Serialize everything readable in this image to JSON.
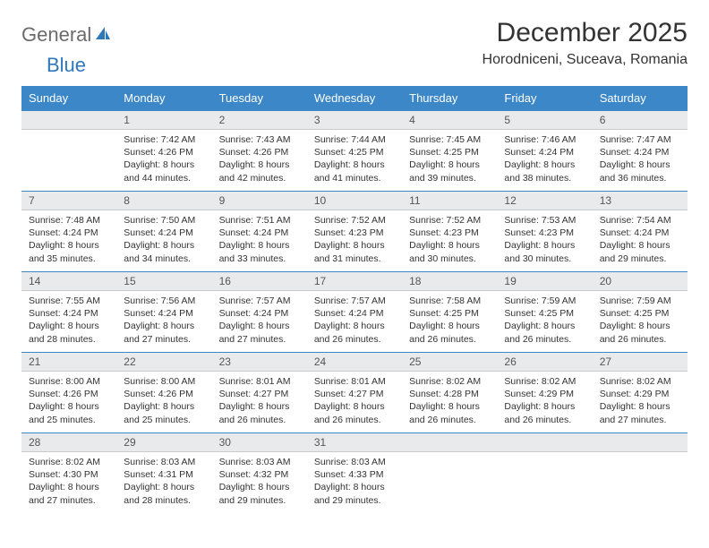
{
  "logo": {
    "text1": "General",
    "text2": "Blue"
  },
  "title": "December 2025",
  "location": "Horodniceni, Suceava, Romania",
  "colors": {
    "header_bg": "#3b87c8",
    "header_text": "#ffffff",
    "daynum_bg": "#e8eaec",
    "daynum_border_top": "#3b87c8",
    "text": "#333333",
    "logo_gray": "#6b6b6b",
    "logo_blue": "#2f77bb"
  },
  "weekdays": [
    "Sunday",
    "Monday",
    "Tuesday",
    "Wednesday",
    "Thursday",
    "Friday",
    "Saturday"
  ],
  "weeks": [
    [
      {
        "n": "",
        "sr": "",
        "ss": "",
        "d1": "",
        "d2": ""
      },
      {
        "n": "1",
        "sr": "Sunrise: 7:42 AM",
        "ss": "Sunset: 4:26 PM",
        "d1": "Daylight: 8 hours",
        "d2": "and 44 minutes."
      },
      {
        "n": "2",
        "sr": "Sunrise: 7:43 AM",
        "ss": "Sunset: 4:26 PM",
        "d1": "Daylight: 8 hours",
        "d2": "and 42 minutes."
      },
      {
        "n": "3",
        "sr": "Sunrise: 7:44 AM",
        "ss": "Sunset: 4:25 PM",
        "d1": "Daylight: 8 hours",
        "d2": "and 41 minutes."
      },
      {
        "n": "4",
        "sr": "Sunrise: 7:45 AM",
        "ss": "Sunset: 4:25 PM",
        "d1": "Daylight: 8 hours",
        "d2": "and 39 minutes."
      },
      {
        "n": "5",
        "sr": "Sunrise: 7:46 AM",
        "ss": "Sunset: 4:24 PM",
        "d1": "Daylight: 8 hours",
        "d2": "and 38 minutes."
      },
      {
        "n": "6",
        "sr": "Sunrise: 7:47 AM",
        "ss": "Sunset: 4:24 PM",
        "d1": "Daylight: 8 hours",
        "d2": "and 36 minutes."
      }
    ],
    [
      {
        "n": "7",
        "sr": "Sunrise: 7:48 AM",
        "ss": "Sunset: 4:24 PM",
        "d1": "Daylight: 8 hours",
        "d2": "and 35 minutes."
      },
      {
        "n": "8",
        "sr": "Sunrise: 7:50 AM",
        "ss": "Sunset: 4:24 PM",
        "d1": "Daylight: 8 hours",
        "d2": "and 34 minutes."
      },
      {
        "n": "9",
        "sr": "Sunrise: 7:51 AM",
        "ss": "Sunset: 4:24 PM",
        "d1": "Daylight: 8 hours",
        "d2": "and 33 minutes."
      },
      {
        "n": "10",
        "sr": "Sunrise: 7:52 AM",
        "ss": "Sunset: 4:23 PM",
        "d1": "Daylight: 8 hours",
        "d2": "and 31 minutes."
      },
      {
        "n": "11",
        "sr": "Sunrise: 7:52 AM",
        "ss": "Sunset: 4:23 PM",
        "d1": "Daylight: 8 hours",
        "d2": "and 30 minutes."
      },
      {
        "n": "12",
        "sr": "Sunrise: 7:53 AM",
        "ss": "Sunset: 4:23 PM",
        "d1": "Daylight: 8 hours",
        "d2": "and 30 minutes."
      },
      {
        "n": "13",
        "sr": "Sunrise: 7:54 AM",
        "ss": "Sunset: 4:24 PM",
        "d1": "Daylight: 8 hours",
        "d2": "and 29 minutes."
      }
    ],
    [
      {
        "n": "14",
        "sr": "Sunrise: 7:55 AM",
        "ss": "Sunset: 4:24 PM",
        "d1": "Daylight: 8 hours",
        "d2": "and 28 minutes."
      },
      {
        "n": "15",
        "sr": "Sunrise: 7:56 AM",
        "ss": "Sunset: 4:24 PM",
        "d1": "Daylight: 8 hours",
        "d2": "and 27 minutes."
      },
      {
        "n": "16",
        "sr": "Sunrise: 7:57 AM",
        "ss": "Sunset: 4:24 PM",
        "d1": "Daylight: 8 hours",
        "d2": "and 27 minutes."
      },
      {
        "n": "17",
        "sr": "Sunrise: 7:57 AM",
        "ss": "Sunset: 4:24 PM",
        "d1": "Daylight: 8 hours",
        "d2": "and 26 minutes."
      },
      {
        "n": "18",
        "sr": "Sunrise: 7:58 AM",
        "ss": "Sunset: 4:25 PM",
        "d1": "Daylight: 8 hours",
        "d2": "and 26 minutes."
      },
      {
        "n": "19",
        "sr": "Sunrise: 7:59 AM",
        "ss": "Sunset: 4:25 PM",
        "d1": "Daylight: 8 hours",
        "d2": "and 26 minutes."
      },
      {
        "n": "20",
        "sr": "Sunrise: 7:59 AM",
        "ss": "Sunset: 4:25 PM",
        "d1": "Daylight: 8 hours",
        "d2": "and 26 minutes."
      }
    ],
    [
      {
        "n": "21",
        "sr": "Sunrise: 8:00 AM",
        "ss": "Sunset: 4:26 PM",
        "d1": "Daylight: 8 hours",
        "d2": "and 25 minutes."
      },
      {
        "n": "22",
        "sr": "Sunrise: 8:00 AM",
        "ss": "Sunset: 4:26 PM",
        "d1": "Daylight: 8 hours",
        "d2": "and 25 minutes."
      },
      {
        "n": "23",
        "sr": "Sunrise: 8:01 AM",
        "ss": "Sunset: 4:27 PM",
        "d1": "Daylight: 8 hours",
        "d2": "and 26 minutes."
      },
      {
        "n": "24",
        "sr": "Sunrise: 8:01 AM",
        "ss": "Sunset: 4:27 PM",
        "d1": "Daylight: 8 hours",
        "d2": "and 26 minutes."
      },
      {
        "n": "25",
        "sr": "Sunrise: 8:02 AM",
        "ss": "Sunset: 4:28 PM",
        "d1": "Daylight: 8 hours",
        "d2": "and 26 minutes."
      },
      {
        "n": "26",
        "sr": "Sunrise: 8:02 AM",
        "ss": "Sunset: 4:29 PM",
        "d1": "Daylight: 8 hours",
        "d2": "and 26 minutes."
      },
      {
        "n": "27",
        "sr": "Sunrise: 8:02 AM",
        "ss": "Sunset: 4:29 PM",
        "d1": "Daylight: 8 hours",
        "d2": "and 27 minutes."
      }
    ],
    [
      {
        "n": "28",
        "sr": "Sunrise: 8:02 AM",
        "ss": "Sunset: 4:30 PM",
        "d1": "Daylight: 8 hours",
        "d2": "and 27 minutes."
      },
      {
        "n": "29",
        "sr": "Sunrise: 8:03 AM",
        "ss": "Sunset: 4:31 PM",
        "d1": "Daylight: 8 hours",
        "d2": "and 28 minutes."
      },
      {
        "n": "30",
        "sr": "Sunrise: 8:03 AM",
        "ss": "Sunset: 4:32 PM",
        "d1": "Daylight: 8 hours",
        "d2": "and 29 minutes."
      },
      {
        "n": "31",
        "sr": "Sunrise: 8:03 AM",
        "ss": "Sunset: 4:33 PM",
        "d1": "Daylight: 8 hours",
        "d2": "and 29 minutes."
      },
      {
        "n": "",
        "sr": "",
        "ss": "",
        "d1": "",
        "d2": ""
      },
      {
        "n": "",
        "sr": "",
        "ss": "",
        "d1": "",
        "d2": ""
      },
      {
        "n": "",
        "sr": "",
        "ss": "",
        "d1": "",
        "d2": ""
      }
    ]
  ]
}
